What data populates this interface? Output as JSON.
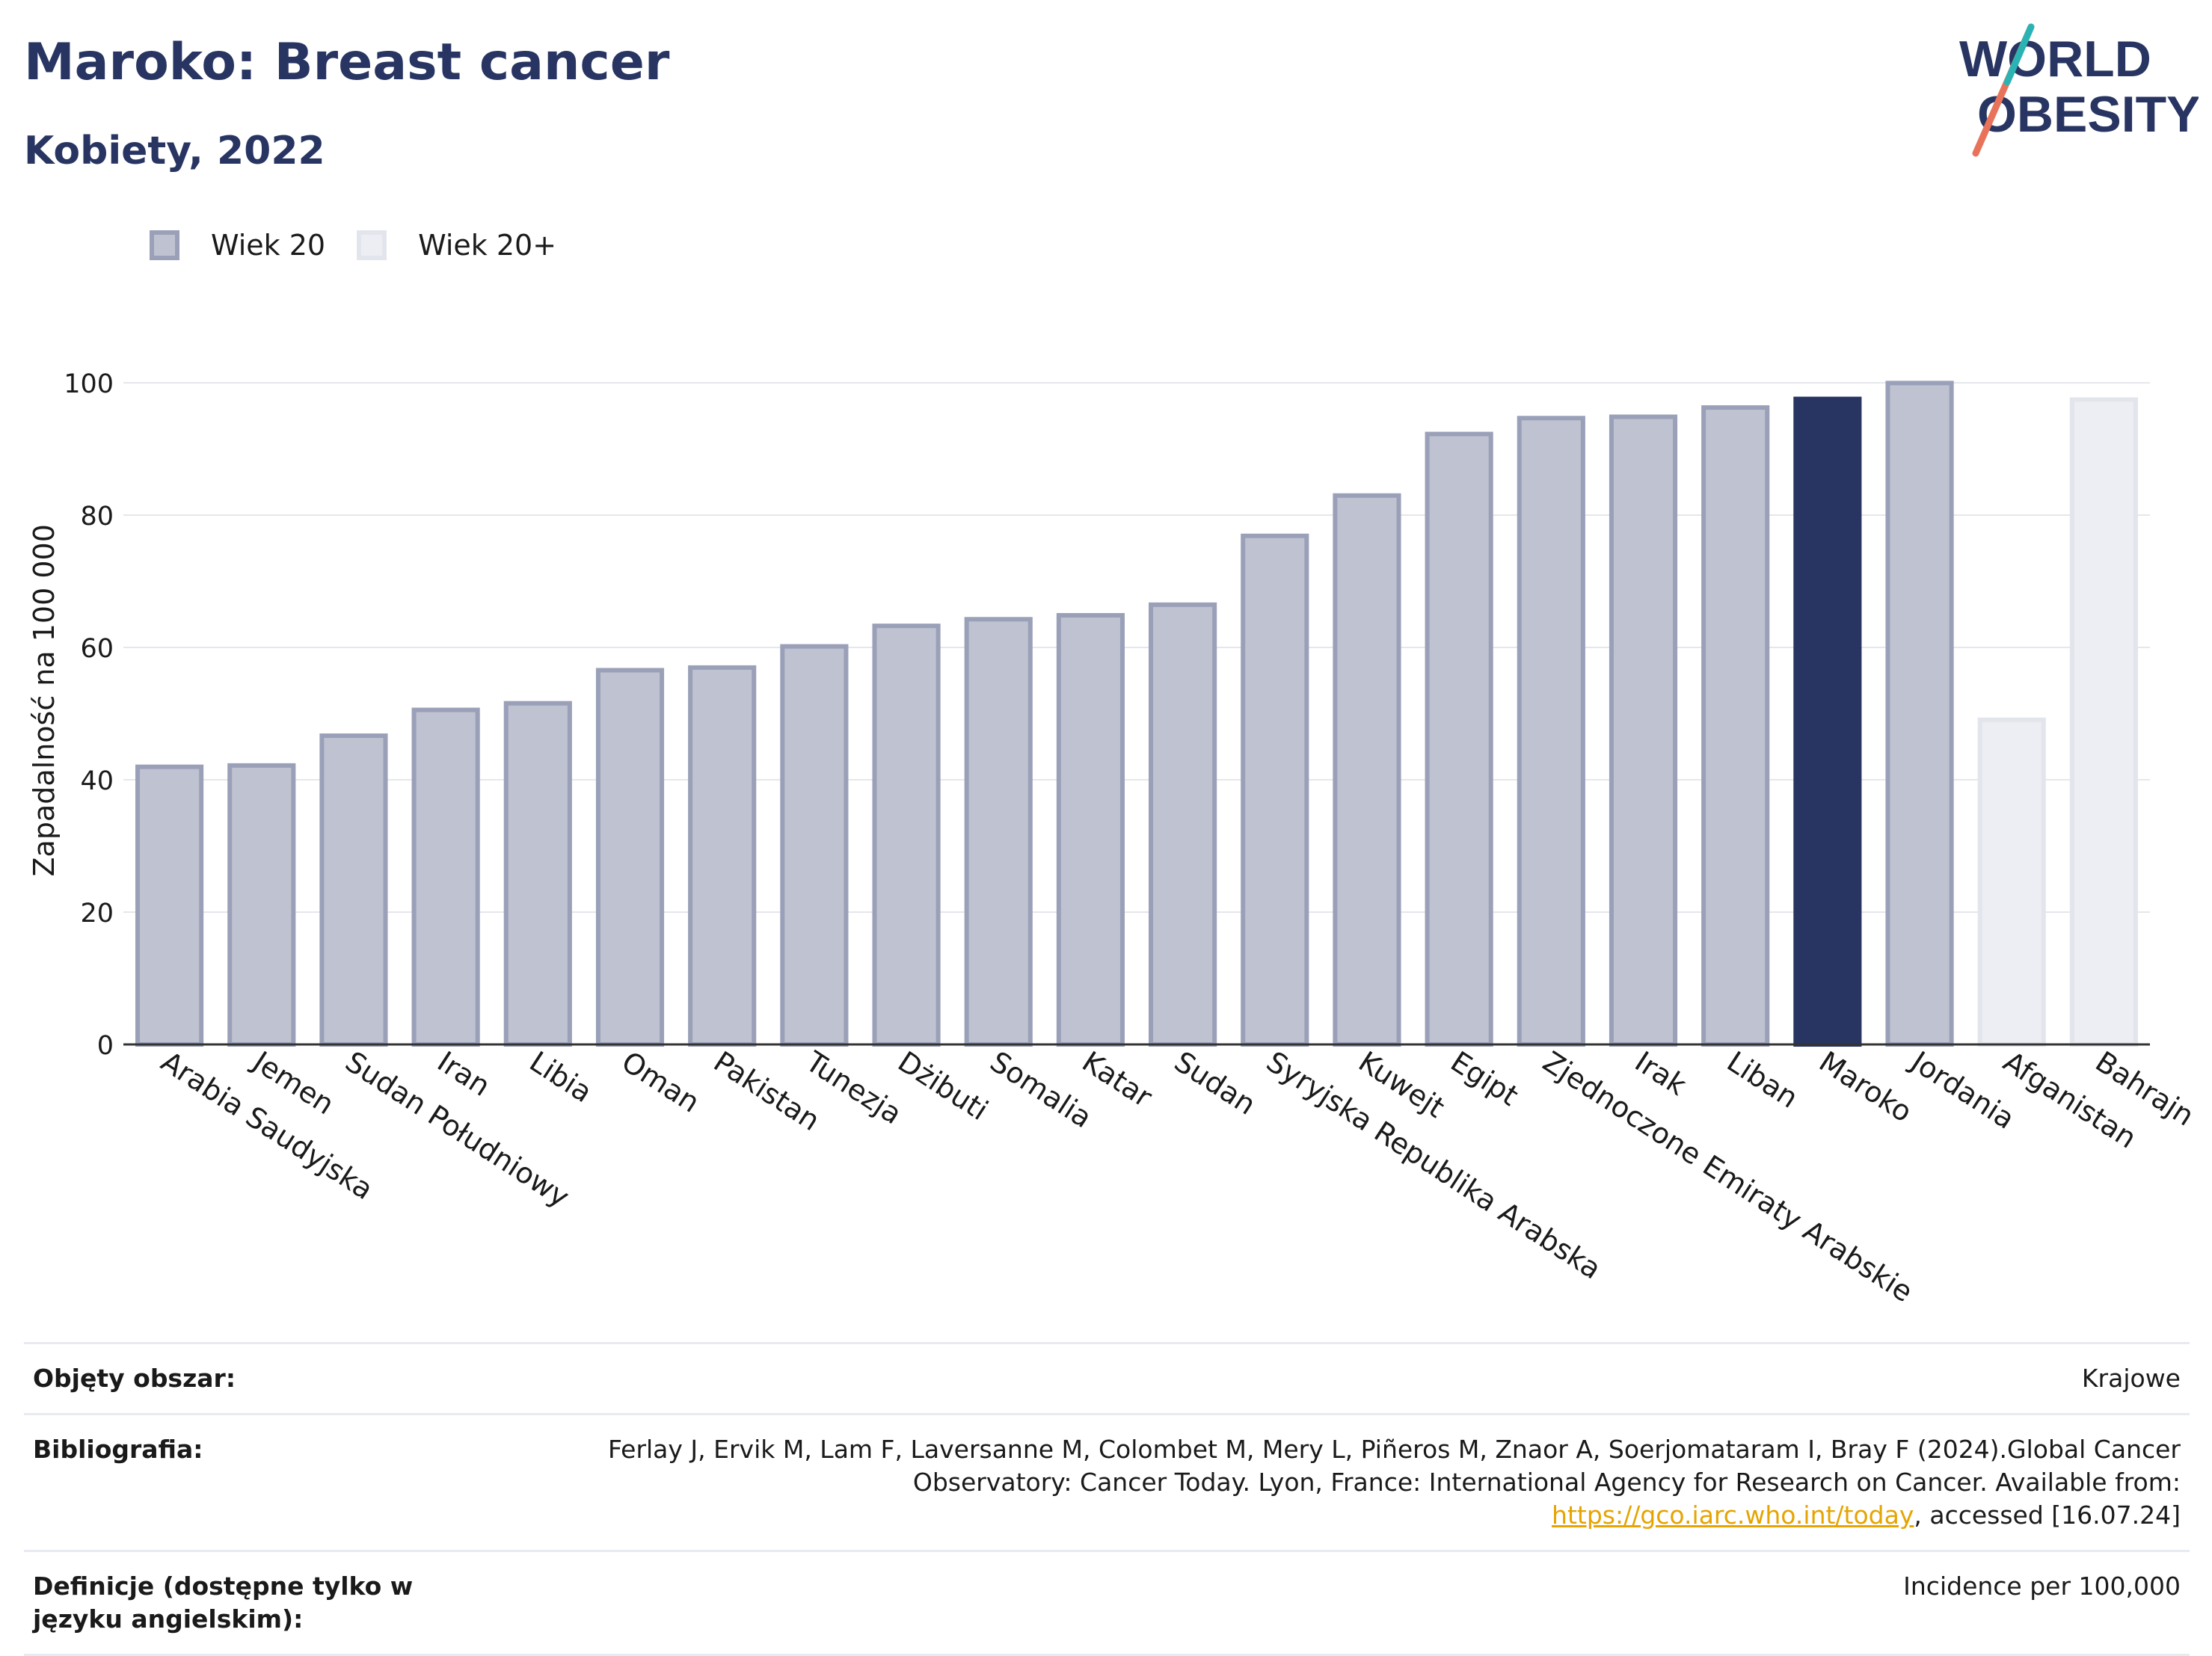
{
  "header": {
    "title": "Maroko: Breast cancer",
    "subtitle": "Kobiety, 2022"
  },
  "logo": {
    "line1": "WORLD",
    "line2": "OBESITY"
  },
  "legend": [
    {
      "label": "Wiek 20",
      "fill": "#bfc2d0",
      "stroke": "#9aa0b8"
    },
    {
      "label": "Wiek 20+",
      "fill": "#eceef3",
      "stroke": "#e3e5ec"
    }
  ],
  "chart_data": {
    "type": "bar",
    "title": "Maroko: Breast cancer",
    "subtitle": "Kobiety, 2022",
    "ylabel": "Zapadalność na 100 000",
    "xlabel": "",
    "ylim": [
      0,
      104
    ],
    "yticks": [
      0,
      20,
      40,
      60,
      80,
      100
    ],
    "grid": true,
    "legend_position": "top-left",
    "categories": [
      "Arabia Saudyjska",
      "Jemen",
      "Sudan Południowy",
      "Iran",
      "Libia",
      "Oman",
      "Pakistan",
      "Tunezja",
      "Dżibuti",
      "Somalia",
      "Katar",
      "Sudan",
      "Syryjska Republika Arabska",
      "Kuwejt",
      "Egipt",
      "Zjednoczone Emiraty Arabskie",
      "Irak",
      "Liban",
      "Maroko",
      "Jordania",
      "Afganistan",
      "Bahrajn"
    ],
    "values": [
      42.3,
      42.5,
      47.0,
      50.9,
      51.9,
      56.9,
      57.3,
      60.5,
      63.6,
      64.6,
      65.2,
      66.8,
      77.2,
      83.3,
      92.6,
      95.0,
      95.2,
      96.6,
      97.9,
      100.3,
      49.4,
      97.8
    ],
    "groups": [
      "Wiek 20",
      "Wiek 20",
      "Wiek 20",
      "Wiek 20",
      "Wiek 20",
      "Wiek 20",
      "Wiek 20",
      "Wiek 20",
      "Wiek 20",
      "Wiek 20",
      "Wiek 20",
      "Wiek 20",
      "Wiek 20",
      "Wiek 20",
      "Wiek 20",
      "Wiek 20",
      "Wiek 20",
      "Wiek 20",
      "Wiek 20",
      "Wiek 20",
      "Wiek 20+",
      "Wiek 20+"
    ],
    "highlight": "Maroko",
    "colors": {
      "default_fill": "#bfc2d0",
      "default_stroke": "#9aa0b8",
      "plus_fill": "#eceef3",
      "plus_stroke": "#e3e5ec",
      "highlight_fill": "#283562",
      "highlight_stroke": "#283562"
    }
  },
  "meta": [
    {
      "key": "Objęty obszar:",
      "value": "Krajowe"
    },
    {
      "key": "Bibliografia:",
      "value": "Ferlay J, Ervik M, Lam F, Laversanne M, Colombet M, Mery L, Piñeros M, Znaor A, Soerjomataram I, Bray F (2024).Global Cancer Observatory: Cancer Today. Lyon, France: International Agency for Research on Cancer. Available from: ",
      "link": "https://gco.iarc.who.int/today",
      "suffix": ", accessed [16.07.24]"
    },
    {
      "key": "Definicje (dostępne tylko w języku angielskim):",
      "value": "Incidence per 100,000"
    }
  ]
}
